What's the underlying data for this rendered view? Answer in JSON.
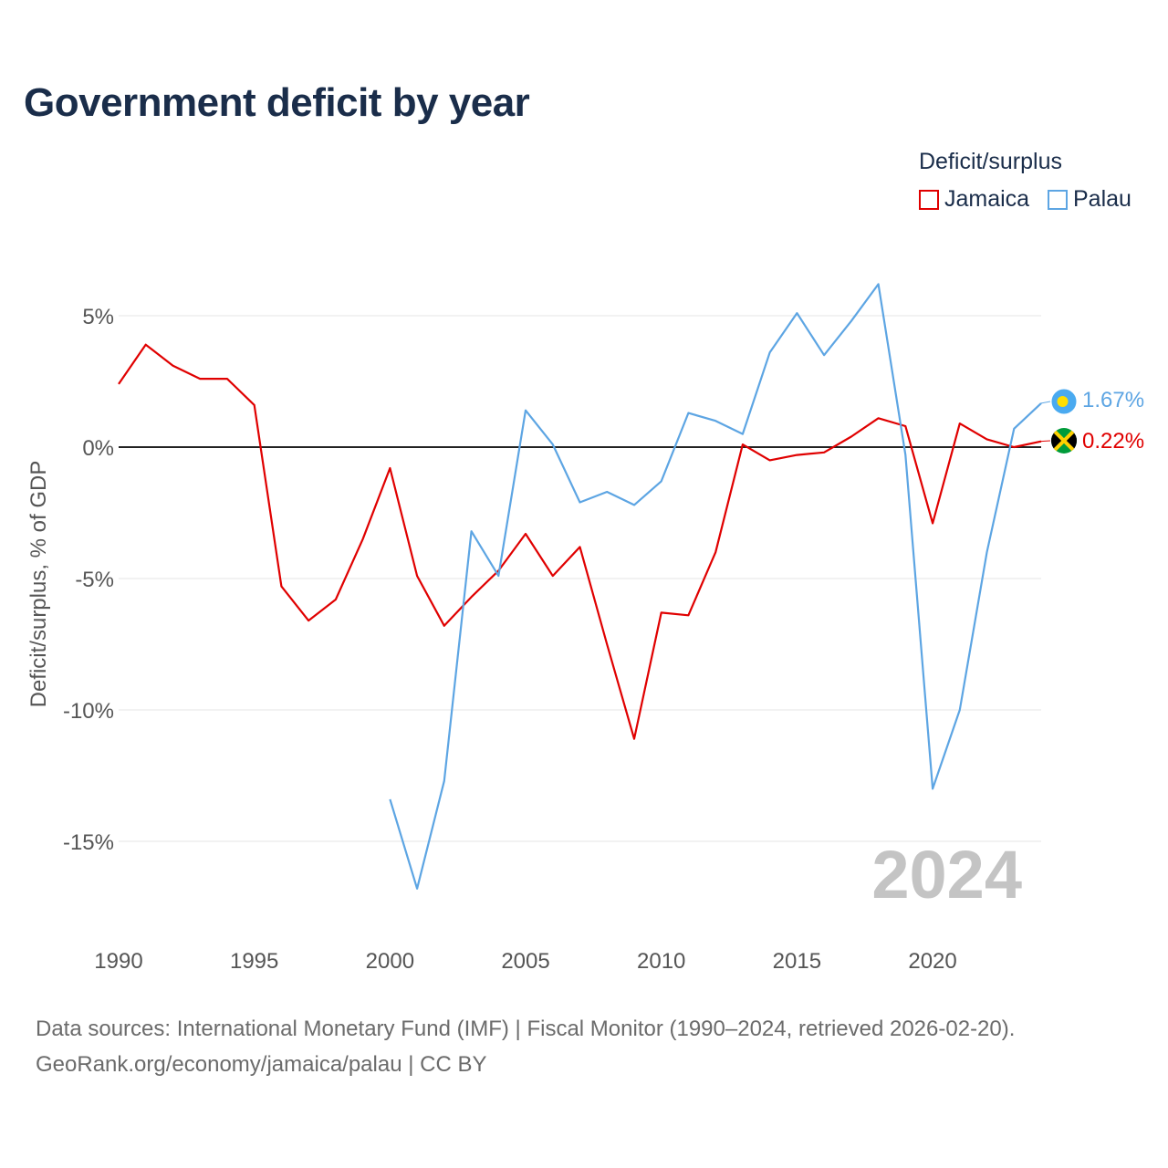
{
  "chart_data": {
    "type": "line",
    "title": "Government deficit by year",
    "xlabel": "",
    "ylabel": "Deficit/surplus, % of GDP",
    "legend_title": "Deficit/surplus",
    "xlim": [
      1990,
      2024
    ],
    "ylim": [
      -17,
      7
    ],
    "x_ticks": [
      1990,
      1995,
      2000,
      2005,
      2010,
      2015,
      2020
    ],
    "x_tick_labels": [
      "1990",
      "1995",
      "2000",
      "2005",
      "2010",
      "2015",
      "2020"
    ],
    "y_ticks": [
      5,
      0,
      -5,
      -10,
      -15
    ],
    "y_tick_labels": [
      "5%",
      "0%",
      "-5%",
      "-10%",
      "-15%"
    ],
    "year_watermark": "2024",
    "series": [
      {
        "name": "Jamaica",
        "color": "#e00000",
        "end_label": "0.22%",
        "flag": "jamaica-flag-icon",
        "points": [
          [
            1990,
            2.4
          ],
          [
            1991,
            3.9
          ],
          [
            1992,
            3.1
          ],
          [
            1993,
            2.6
          ],
          [
            1994,
            2.6
          ],
          [
            1995,
            1.6
          ],
          [
            1996,
            -5.3
          ],
          [
            1997,
            -6.6
          ],
          [
            1998,
            -5.8
          ],
          [
            1999,
            -3.5
          ],
          [
            2000,
            -0.8
          ],
          [
            2001,
            -4.9
          ],
          [
            2002,
            -6.8
          ],
          [
            2003,
            -5.7
          ],
          [
            2004,
            -4.7
          ],
          [
            2005,
            -3.3
          ],
          [
            2006,
            -4.9
          ],
          [
            2007,
            -3.8
          ],
          [
            2008,
            -7.5
          ],
          [
            2009,
            -11.1
          ],
          [
            2010,
            -6.3
          ],
          [
            2011,
            -6.4
          ],
          [
            2012,
            -4.0
          ],
          [
            2013,
            0.1
          ],
          [
            2014,
            -0.5
          ],
          [
            2015,
            -0.3
          ],
          [
            2016,
            -0.2
          ],
          [
            2017,
            0.4
          ],
          [
            2018,
            1.1
          ],
          [
            2019,
            0.8
          ],
          [
            2020,
            -2.9
          ],
          [
            2021,
            0.9
          ],
          [
            2022,
            0.3
          ],
          [
            2023,
            0.0
          ],
          [
            2024,
            0.22
          ]
        ]
      },
      {
        "name": "Palau",
        "color": "#5da5e3",
        "end_label": "1.67%",
        "flag": "palau-flag-icon",
        "points": [
          [
            2000,
            -13.4
          ],
          [
            2001,
            -16.8
          ],
          [
            2002,
            -12.7
          ],
          [
            2003,
            -3.2
          ],
          [
            2004,
            -4.9
          ],
          [
            2005,
            1.4
          ],
          [
            2006,
            0.1
          ],
          [
            2007,
            -2.1
          ],
          [
            2008,
            -1.7
          ],
          [
            2009,
            -2.2
          ],
          [
            2010,
            -1.3
          ],
          [
            2011,
            1.3
          ],
          [
            2012,
            1.0
          ],
          [
            2013,
            0.5
          ],
          [
            2014,
            3.6
          ],
          [
            2015,
            5.1
          ],
          [
            2016,
            3.5
          ],
          [
            2017,
            4.8
          ],
          [
            2018,
            6.2
          ],
          [
            2019,
            -0.3
          ],
          [
            2020,
            -13.0
          ],
          [
            2021,
            -10.0
          ],
          [
            2022,
            -4.0
          ],
          [
            2023,
            0.7
          ],
          [
            2024,
            1.67
          ]
        ]
      }
    ]
  },
  "legend": {
    "title": "Deficit/surplus",
    "items": [
      {
        "label": "Jamaica",
        "color": "#e00000"
      },
      {
        "label": "Palau",
        "color": "#5da5e3"
      }
    ]
  },
  "source": {
    "line1": "Data sources: International Monetary Fund (IMF) | Fiscal Monitor (1990–2024, retrieved 2026-02-20).",
    "line2": "GeoRank.org/economy/jamaica/palau | CC BY"
  }
}
